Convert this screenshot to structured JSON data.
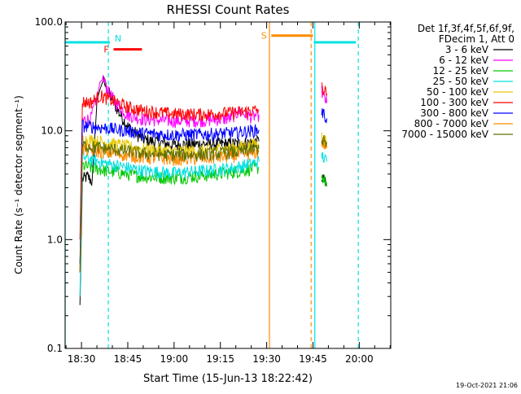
{
  "chart_data": {
    "type": "line",
    "title": "RHESSI Count Rates",
    "xlabel": "Start Time (15-Jun-13 18:22:42)",
    "ylabel": "Count Rate (s⁻¹ detector segment⁻¹)",
    "x_unit": "minutes of day (HH:MM)",
    "xlim": [
      1104.7,
      1210.2
    ],
    "ylim": [
      0.1,
      100.0
    ],
    "yscale": "log",
    "x_ticks": [
      "18:30",
      "18:45",
      "19:00",
      "19:15",
      "19:30",
      "19:45",
      "20:00"
    ],
    "x_tick_values": [
      1110,
      1125,
      1140,
      1155,
      1170,
      1185,
      1200
    ],
    "y_ticks": [
      "0.1",
      "1.0",
      "10.0",
      "100.0"
    ],
    "y_tick_values": [
      0.1,
      1.0,
      10.0,
      100.0
    ],
    "legend": {
      "position": "top-right",
      "header": [
        "Det 1f,3f,4f,5f,6f,9f,",
        "FDecim 1, Att 0"
      ]
    },
    "series": [
      {
        "name": "3 - 6 keV",
        "color": "#000000",
        "x": [
          1109.5,
          1110.3,
          1112.0,
          1113.5,
          1115.0,
          1116.0,
          1117.0,
          1119.0,
          1122.0,
          1125.0,
          1130.0,
          1140.0,
          1150.0,
          1160.0,
          1165.0,
          1167.5,
          1187.8,
          1189.5
        ],
        "y": [
          0.25,
          3.6,
          3.8,
          3.4,
          19.0,
          24.0,
          29.0,
          22.0,
          15.0,
          11.0,
          8.3,
          7.4,
          7.6,
          7.6,
          7.8,
          8.0,
          3.8,
          3.1
        ]
      },
      {
        "name": "6 - 12 keV",
        "color": "#ff00ff",
        "x": [
          1109.5,
          1110.3,
          1113.0,
          1115.0,
          1116.0,
          1117.0,
          1119.0,
          1122.0,
          1125.0,
          1130.0,
          1140.0,
          1150.0,
          1158.0,
          1161.0,
          1165.0,
          1167.5,
          1187.8,
          1189.5
        ],
        "y": [
          0.5,
          12.5,
          13.0,
          20.0,
          28.0,
          30.0,
          22.0,
          17.0,
          14.0,
          12.8,
          12.3,
          12.5,
          13.0,
          15.0,
          13.5,
          14.0,
          23.0,
          18.0
        ]
      },
      {
        "name": "12 - 25 keV",
        "color": "#00c800",
        "x": [
          1109.5,
          1110.3,
          1113.0,
          1118.0,
          1125.0,
          1130.0,
          1140.0,
          1150.0,
          1160.0,
          1165.0,
          1167.5,
          1187.8,
          1189.5
        ],
        "y": [
          0.6,
          4.8,
          4.6,
          4.3,
          4.0,
          3.8,
          3.7,
          3.9,
          4.2,
          4.5,
          4.6,
          3.9,
          3.2
        ]
      },
      {
        "name": "25 - 50 keV",
        "color": "#00e0e0",
        "x": [
          1109.5,
          1110.3,
          1113.0,
          1118.0,
          1125.0,
          1130.0,
          1140.0,
          1150.0,
          1160.0,
          1165.0,
          1167.5,
          1187.8,
          1189.5
        ],
        "y": [
          0.3,
          5.8,
          5.5,
          5.0,
          4.6,
          4.3,
          4.1,
          4.3,
          4.6,
          5.0,
          5.2,
          6.0,
          5.2
        ]
      },
      {
        "name": "50 - 100 keV",
        "color": "#e6c800",
        "x": [
          1109.5,
          1110.3,
          1113.0,
          1118.0,
          1125.0,
          1130.0,
          1140.0,
          1150.0,
          1160.0,
          1165.0,
          1167.5,
          1187.8,
          1189.5
        ],
        "y": [
          0.5,
          8.4,
          8.2,
          7.8,
          7.2,
          6.8,
          6.5,
          6.6,
          7.0,
          7.4,
          7.6,
          9.0,
          8.0
        ]
      },
      {
        "name": "100 - 300 keV",
        "color": "#ff0000",
        "x": [
          1109.5,
          1110.3,
          1113.0,
          1116.0,
          1118.0,
          1122.0,
          1125.0,
          1130.0,
          1140.0,
          1150.0,
          1160.0,
          1165.0,
          1167.5,
          1187.8,
          1189.5
        ],
        "y": [
          1.0,
          18.5,
          18.3,
          21.0,
          20.0,
          18.0,
          16.5,
          15.3,
          14.3,
          14.2,
          14.8,
          15.3,
          15.6,
          25.0,
          22.0
        ]
      },
      {
        "name": "300 - 800 keV",
        "color": "#0000ff",
        "x": [
          1109.5,
          1110.3,
          1113.0,
          1118.0,
          1125.0,
          1130.0,
          1140.0,
          1150.0,
          1160.0,
          1165.0,
          1167.5,
          1187.8,
          1189.5
        ],
        "y": [
          0.6,
          11.2,
          11.0,
          10.6,
          10.0,
          9.5,
          9.2,
          9.3,
          9.6,
          10.0,
          10.2,
          15.0,
          13.0
        ]
      },
      {
        "name": "800 - 7000 keV",
        "color": "#ff8c00",
        "x": [
          1109.5,
          1110.3,
          1113.0,
          1118.0,
          1125.0,
          1130.0,
          1140.0,
          1150.0,
          1160.0,
          1165.0,
          1167.5,
          1187.8,
          1189.5
        ],
        "y": [
          0.5,
          6.8,
          6.6,
          6.3,
          6.0,
          5.7,
          5.5,
          5.6,
          5.9,
          6.2,
          6.4,
          8.0,
          7.0
        ]
      },
      {
        "name": "7000 - 15000 keV",
        "color": "#607000",
        "x": [
          1109.5,
          1110.3,
          1113.0,
          1118.0,
          1125.0,
          1130.0,
          1140.0,
          1150.0,
          1160.0,
          1165.0,
          1167.5,
          1187.8,
          1189.5
        ],
        "y": [
          0.5,
          7.4,
          7.2,
          6.9,
          6.5,
          6.2,
          6.0,
          6.1,
          6.4,
          6.7,
          6.9,
          8.5,
          7.5
        ]
      }
    ],
    "flags": [
      {
        "label": "N",
        "color": "#00e0e0",
        "segments": [
          [
            1104.7,
            1119.2
          ],
          [
            1185.3,
            1198.9
          ]
        ],
        "level": 65
      },
      {
        "label": "F",
        "color": "#ff0000",
        "segments": [
          [
            1120.4,
            1129.6
          ]
        ],
        "level": 56
      },
      {
        "label": "S",
        "color": "#ff8c00",
        "segments": [
          [
            1171.5,
            1185.0
          ]
        ],
        "level": 75
      }
    ],
    "vlines": [
      {
        "x": 1104.7,
        "color": "#00e0e0",
        "dash": false
      },
      {
        "x": 1118.7,
        "color": "#00e0e0",
        "dash": true
      },
      {
        "x": 1170.9,
        "color": "#ff8c00",
        "dash": false
      },
      {
        "x": 1184.4,
        "color": "#ff8c00",
        "dash": true
      },
      {
        "x": 1185.6,
        "color": "#00e0e0",
        "dash": false
      },
      {
        "x": 1199.7,
        "color": "#00e0e0",
        "dash": true
      }
    ],
    "footer": "19-Oct-2021 21:06"
  }
}
